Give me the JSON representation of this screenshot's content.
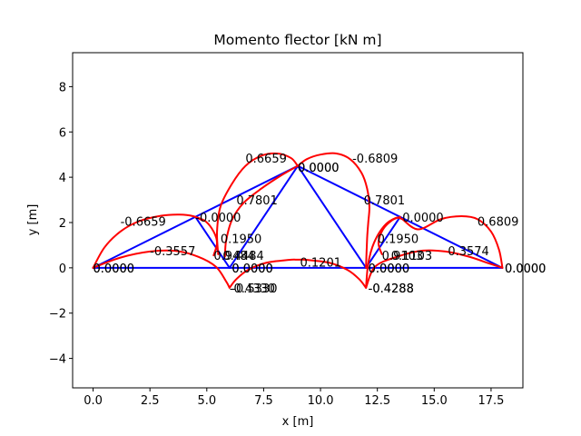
{
  "chart_data": {
    "type": "line",
    "title": "Momento flector [kN m]",
    "xlabel": "x [m]",
    "ylabel": "y [m]",
    "xlim": [
      -0.9,
      18.9
    ],
    "ylim": [
      -5.3,
      9.5
    ],
    "xticks": [
      0.0,
      2.5,
      5.0,
      7.5,
      10.0,
      12.5,
      15.0,
      17.5
    ],
    "xtick_labels": [
      "0.0",
      "2.5",
      "5.0",
      "7.5",
      "10.0",
      "12.5",
      "15.0",
      "17.5"
    ],
    "yticks": [
      -4,
      -2,
      0,
      2,
      4,
      6,
      8
    ],
    "ytick_labels": [
      "−4",
      "−2",
      "0",
      "2",
      "4",
      "6",
      "8"
    ],
    "grid": false,
    "colors": {
      "structure": "#0000ff",
      "moment": "#ff0000",
      "text": "#000000"
    },
    "structure_members": [
      [
        [
          0,
          0
        ],
        [
          6,
          0
        ]
      ],
      [
        [
          6,
          0
        ],
        [
          12,
          0
        ]
      ],
      [
        [
          12,
          0
        ],
        [
          18,
          0
        ]
      ],
      [
        [
          0,
          0
        ],
        [
          4.5,
          2.25
        ]
      ],
      [
        [
          4.5,
          2.25
        ],
        [
          9,
          4.5
        ]
      ],
      [
        [
          4.5,
          2.25
        ],
        [
          6,
          0
        ]
      ],
      [
        [
          6,
          0
        ],
        [
          9,
          4.5
        ]
      ],
      [
        [
          9,
          4.5
        ],
        [
          12,
          0
        ]
      ],
      [
        [
          9,
          4.5
        ],
        [
          13.5,
          2.25
        ]
      ],
      [
        [
          13.5,
          2.25
        ],
        [
          18,
          0
        ]
      ],
      [
        [
          12,
          0
        ],
        [
          13.5,
          2.25
        ]
      ]
    ],
    "moment_series": [
      {
        "points": [
          [
            0,
            0
          ],
          [
            0.5,
            0.9
          ],
          [
            1.2,
            1.6
          ],
          [
            2,
            2.05
          ],
          [
            3,
            2.3
          ],
          [
            3.8,
            2.35
          ],
          [
            4.4,
            2.28
          ],
          [
            4.8,
            2.1
          ]
        ]
      },
      {
        "points": [
          [
            4.5,
            2.25
          ],
          [
            4.95,
            2.05
          ],
          [
            5.3,
            1.6
          ],
          [
            5.45,
            1.1
          ],
          [
            5.3,
            0.55
          ]
        ]
      },
      {
        "points": [
          [
            0,
            0
          ],
          [
            1.2,
            0.45
          ],
          [
            2.5,
            0.72
          ],
          [
            3.6,
            0.75
          ],
          [
            4.6,
            0.5
          ],
          [
            5.4,
            0.05
          ],
          [
            5.85,
            -0.6
          ],
          [
            6,
            -0.88
          ]
        ]
      },
      {
        "points": [
          [
            6,
            -0.88
          ],
          [
            6.3,
            -0.5
          ],
          [
            6.8,
            -0.1
          ],
          [
            7.6,
            0.22
          ],
          [
            8.6,
            0.35
          ],
          [
            9,
            0.36
          ],
          [
            9.4,
            0.35
          ],
          [
            10.4,
            0.22
          ],
          [
            11.2,
            -0.1
          ],
          [
            11.7,
            -0.5
          ],
          [
            12,
            -0.88
          ]
        ]
      },
      {
        "points": [
          [
            5.5,
            0.6
          ],
          [
            5.45,
            1.6
          ],
          [
            5.6,
            2.7
          ],
          [
            6.1,
            3.7
          ],
          [
            6.7,
            4.5
          ],
          [
            7.4,
            4.95
          ],
          [
            8.1,
            5.05
          ],
          [
            8.7,
            4.85
          ],
          [
            9,
            4.5
          ]
        ]
      },
      {
        "points": [
          [
            5.8,
            0.5
          ],
          [
            5.85,
            1.2
          ],
          [
            6.1,
            2.1
          ],
          [
            6.6,
            2.85
          ],
          [
            7.4,
            3.5
          ],
          [
            8.3,
            4.1
          ],
          [
            9,
            4.5
          ]
        ]
      },
      {
        "points": [
          [
            9,
            4.5
          ],
          [
            9.4,
            4.8
          ],
          [
            10,
            5
          ],
          [
            10.7,
            5.05
          ],
          [
            11.3,
            4.8
          ],
          [
            11.8,
            4.2
          ],
          [
            12.05,
            3.5
          ],
          [
            12.15,
            2.7
          ],
          [
            12.1,
            2
          ],
          [
            12.05,
            1.3
          ],
          [
            12,
            0
          ]
        ]
      },
      {
        "points": [
          [
            12,
            -0.88
          ],
          [
            12.1,
            0.2
          ],
          [
            12.35,
            1.1
          ],
          [
            12.8,
            1.85
          ],
          [
            13.3,
            2.2
          ],
          [
            13.6,
            2.15
          ]
        ]
      },
      {
        "points": [
          [
            12.7,
            0.6
          ],
          [
            12.55,
            1.1
          ],
          [
            12.75,
            1.7
          ],
          [
            13.15,
            2.1
          ],
          [
            13.5,
            2.25
          ]
        ]
      },
      {
        "points": [
          [
            12,
            -0.88
          ],
          [
            12.4,
            0.05
          ],
          [
            13.4,
            0.5
          ],
          [
            14.5,
            0.76
          ],
          [
            15.5,
            0.72
          ],
          [
            16.5,
            0.5
          ],
          [
            17.4,
            0.2
          ],
          [
            18,
            0
          ]
        ]
      },
      {
        "points": [
          [
            13.6,
            2.15
          ],
          [
            14.3,
            1.7
          ],
          [
            15.3,
            2.15
          ],
          [
            16.2,
            2.28
          ],
          [
            16.9,
            2.15
          ],
          [
            17.5,
            1.6
          ],
          [
            17.85,
            0.8
          ],
          [
            18,
            0
          ]
        ]
      }
    ],
    "annotations": [
      {
        "text": "0.0000",
        "x": 0.0,
        "y": 0.0
      },
      {
        "text": "0.0000",
        "x": 0.0,
        "y": 0.0
      },
      {
        "text": "-0.6659",
        "x": 1.2,
        "y": 2.05
      },
      {
        "text": "-0.3557",
        "x": 2.5,
        "y": 0.75
      },
      {
        "text": "-0.0000",
        "x": 4.5,
        "y": 2.25
      },
      {
        "text": "0.1950",
        "x": 5.6,
        "y": 1.3
      },
      {
        "text": "0.9484",
        "x": 5.3,
        "y": 0.55
      },
      {
        "text": "0.4484",
        "x": 5.7,
        "y": 0.55
      },
      {
        "text": "0.0000",
        "x": 6.1,
        "y": 0.0
      },
      {
        "text": "0.0000",
        "x": 6.1,
        "y": 0.0
      },
      {
        "text": "-0.4330",
        "x": 6.0,
        "y": -0.88
      },
      {
        "text": "-0.5330",
        "x": 6.1,
        "y": -0.88
      },
      {
        "text": "0.7801",
        "x": 6.3,
        "y": 3.0
      },
      {
        "text": "0.6659",
        "x": 6.7,
        "y": 4.85
      },
      {
        "text": "0.0000",
        "x": 9.0,
        "y": 4.45
      },
      {
        "text": "0.0000",
        "x": 9.0,
        "y": 4.45
      },
      {
        "text": "-0.6809",
        "x": 11.4,
        "y": 4.85
      },
      {
        "text": "0.7801",
        "x": 11.9,
        "y": 3.0
      },
      {
        "text": "0.1201",
        "x": 9.1,
        "y": 0.25
      },
      {
        "text": "0.0000",
        "x": 12.1,
        "y": 0.0
      },
      {
        "text": "0.0000",
        "x": 12.1,
        "y": 0.0
      },
      {
        "text": "-0.4288",
        "x": 12.1,
        "y": -0.88
      },
      {
        "text": "-0.4288",
        "x": 12.1,
        "y": -0.88
      },
      {
        "text": "0.1950",
        "x": 12.5,
        "y": 1.3
      },
      {
        "text": "0.9103",
        "x": 12.7,
        "y": 0.55
      },
      {
        "text": "0.1103",
        "x": 13.1,
        "y": 0.55
      },
      {
        "text": "0.0000",
        "x": 13.6,
        "y": 2.25
      },
      {
        "text": "0.3574",
        "x": 15.6,
        "y": 0.75
      },
      {
        "text": "0.6809",
        "x": 16.9,
        "y": 2.05
      },
      {
        "text": "0.0000",
        "x": 18.1,
        "y": 0.0
      },
      {
        "text": "0.0000",
        "x": 18.1,
        "y": 0.0
      }
    ]
  }
}
